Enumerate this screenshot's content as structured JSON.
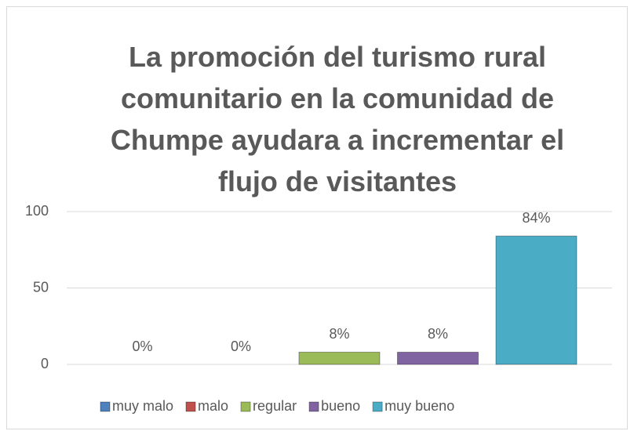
{
  "chart_data": {
    "type": "bar",
    "title": "La promoción del turismo rural comunitario en la comunidad de Chumpe ayudara a incrementar el flujo de visitantes",
    "categories": [
      null
    ],
    "series": [
      {
        "name": "muy malo",
        "color": "#4f81bd",
        "values": [
          0
        ],
        "value_labels": [
          "0%"
        ]
      },
      {
        "name": "malo",
        "color": "#c0504d",
        "values": [
          0
        ],
        "value_labels": [
          "0%"
        ]
      },
      {
        "name": "regular",
        "color": "#9bbb59",
        "values": [
          8
        ],
        "value_labels": [
          "8%"
        ]
      },
      {
        "name": "bueno",
        "color": "#8064a2",
        "values": [
          8
        ],
        "value_labels": [
          "8%"
        ]
      },
      {
        "name": "muy bueno",
        "color": "#4bacc6",
        "values": [
          84
        ],
        "value_labels": [
          "84%"
        ]
      }
    ],
    "ylim": [
      0,
      100
    ],
    "yticks": [
      0,
      50,
      100
    ],
    "grid": true,
    "legend": "bottom"
  }
}
